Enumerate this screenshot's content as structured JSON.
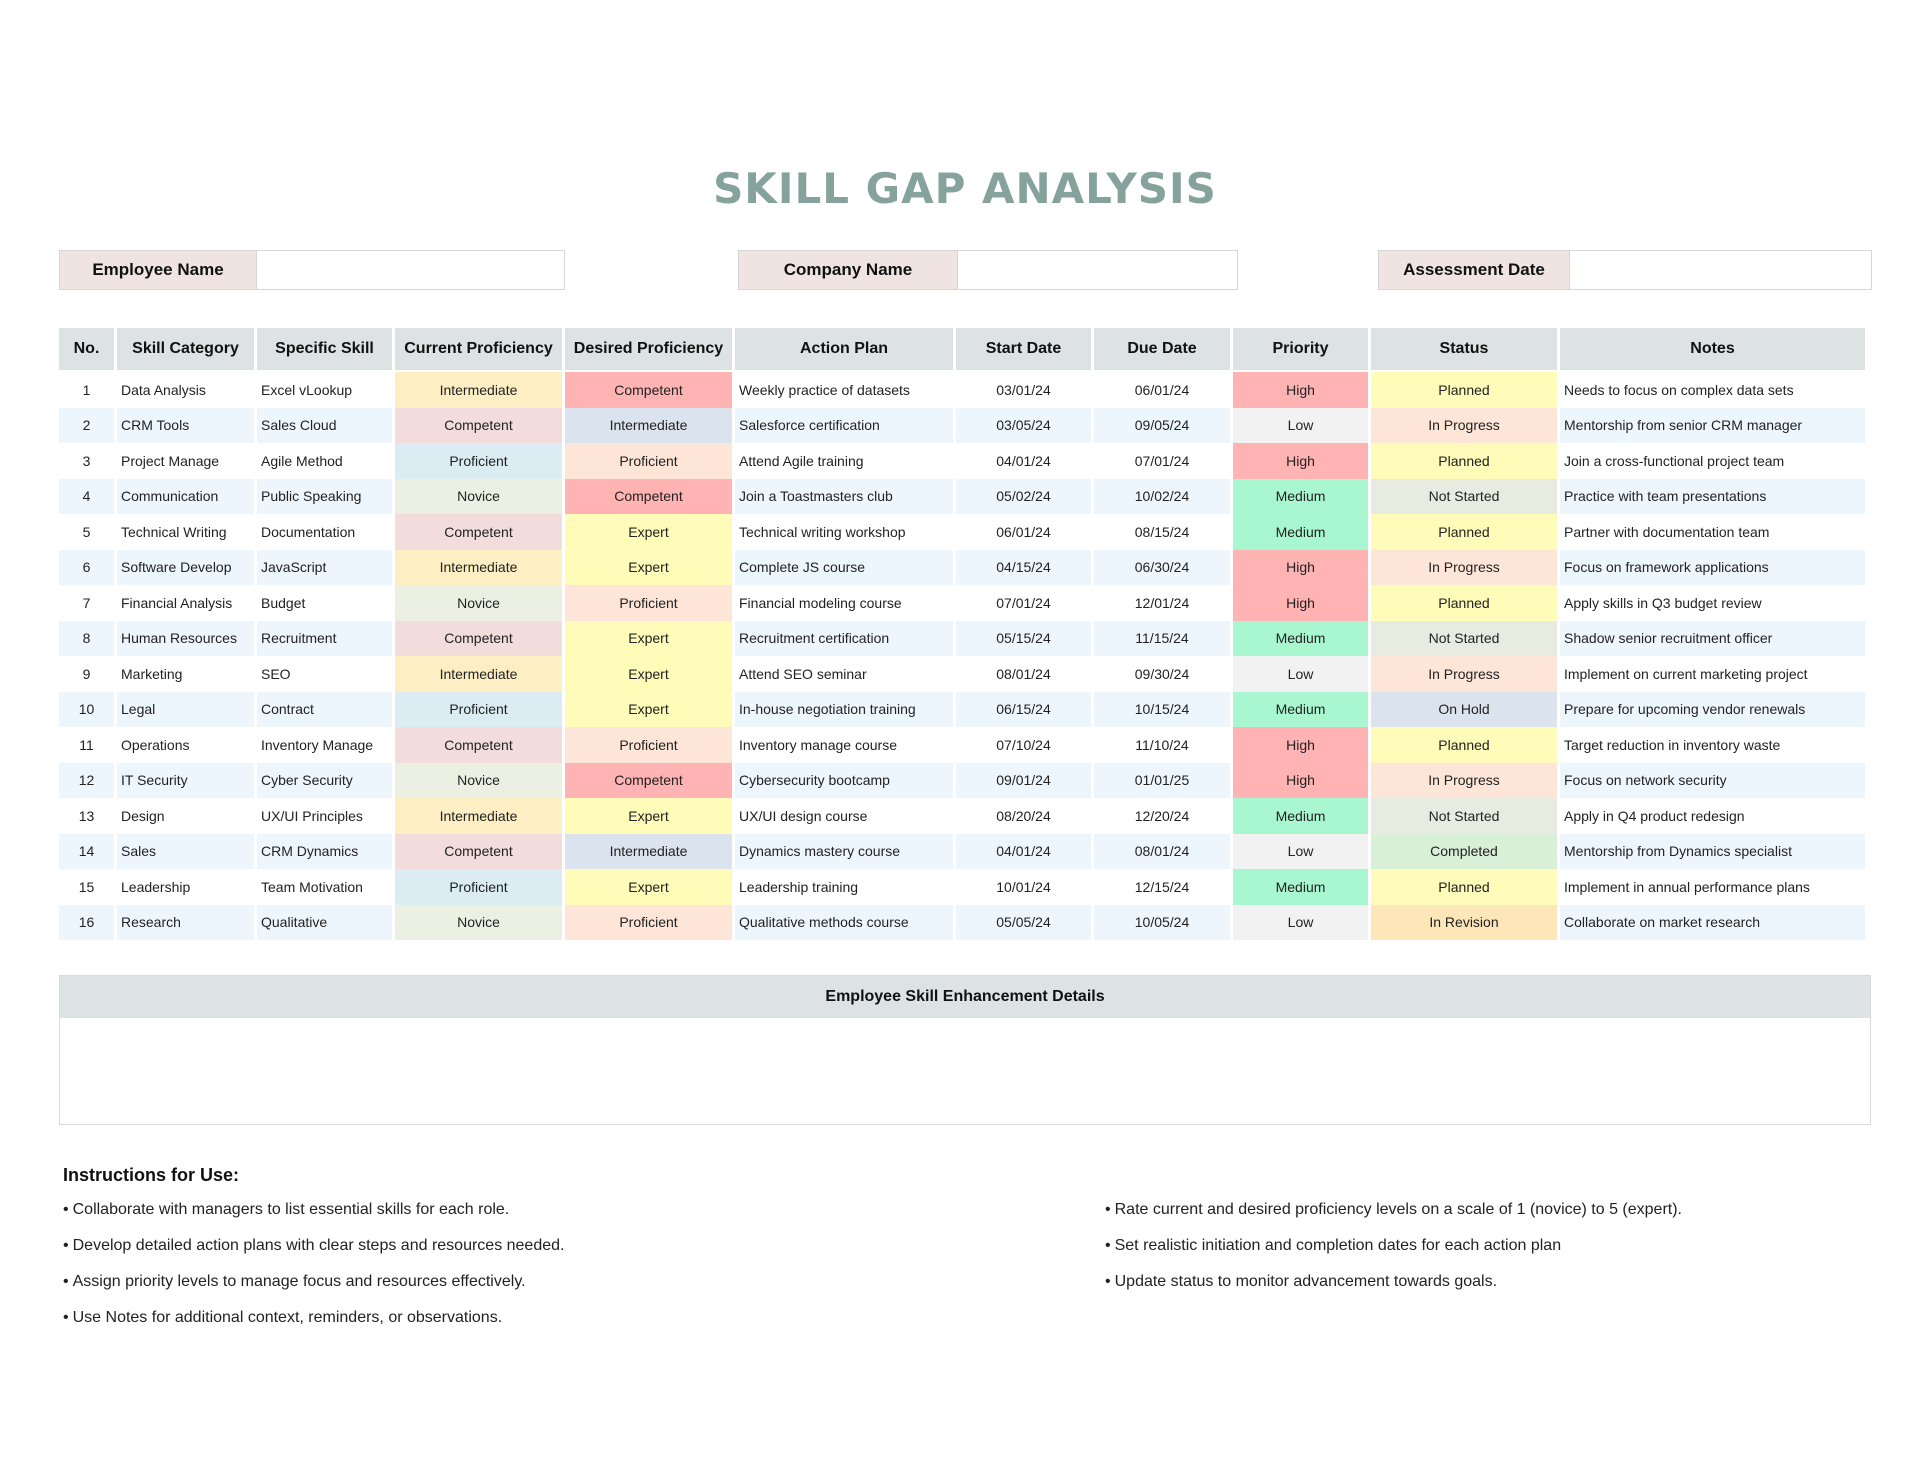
{
  "title": "SKILL GAP ANALYSIS",
  "header_fields": {
    "employee_name": {
      "label": "Employee Name",
      "value": ""
    },
    "company_name": {
      "label": "Company Name",
      "value": ""
    },
    "assessment_date": {
      "label": "Assessment Date",
      "value": ""
    }
  },
  "table": {
    "columns": [
      "No.",
      "Skill Category",
      "Specific Skill",
      "Current Proficiency",
      "Desired Proficiency",
      "Action Plan",
      "Start Date",
      "Due Date",
      "Priority",
      "Status",
      "Notes"
    ],
    "colors": {
      "proficiency": {
        "Intermediate_current": "#fdefc3",
        "Competent_current": "#f3dcdc",
        "Proficient_current": "#dbedf3",
        "Novice_current": "#ecf0e2",
        "Competent_desired": "#ffb3b3",
        "Intermediate_desired": "#dbe4ee",
        "Proficient_desired": "#fde5d8",
        "Expert_desired": "#fefcb8"
      },
      "priority": {
        "High": "#ffb3b3",
        "Low": "#f2f2f2",
        "Medium": "#a8f7d0"
      },
      "status": {
        "Planned": "#fefcb8",
        "In Progress": "#fde5d8",
        "Not Started": "#e8ece0",
        "On Hold": "#dbe4ee",
        "Completed": "#d8efd8",
        "In Revision": "#fde6b8"
      }
    },
    "rows": [
      {
        "no": "1",
        "category": "Data Analysis",
        "skill": "Excel vLookup",
        "current": "Intermediate",
        "desired": "Competent",
        "action": "Weekly practice of datasets",
        "start": "03/01/24",
        "due": "06/01/24",
        "priority": "High",
        "status": "Planned",
        "notes": "Needs to focus on complex data sets"
      },
      {
        "no": "2",
        "category": "CRM Tools",
        "skill": "Sales Cloud",
        "current": "Competent",
        "desired": "Intermediate",
        "action": "Salesforce certification",
        "start": "03/05/24",
        "due": "09/05/24",
        "priority": "Low",
        "status": "In Progress",
        "notes": "Mentorship from senior CRM manager"
      },
      {
        "no": "3",
        "category": "Project Manage",
        "skill": "Agile Method",
        "current": "Proficient",
        "desired": "Proficient",
        "action": "Attend Agile training",
        "start": "04/01/24",
        "due": "07/01/24",
        "priority": "High",
        "status": "Planned",
        "notes": "Join a cross-functional project team"
      },
      {
        "no": "4",
        "category": "Communication",
        "skill": "Public Speaking",
        "current": "Novice",
        "desired": "Competent",
        "action": "Join a Toastmasters club",
        "start": "05/02/24",
        "due": "10/02/24",
        "priority": "Medium",
        "status": "Not Started",
        "notes": "Practice with team presentations"
      },
      {
        "no": "5",
        "category": "Technical Writing",
        "skill": "Documentation",
        "current": "Competent",
        "desired": "Expert",
        "action": "Technical writing workshop",
        "start": "06/01/24",
        "due": "08/15/24",
        "priority": "Medium",
        "status": "Planned",
        "notes": "Partner with documentation team"
      },
      {
        "no": "6",
        "category": "Software Develop",
        "skill": "JavaScript",
        "current": "Intermediate",
        "desired": "Expert",
        "action": "Complete JS course",
        "start": "04/15/24",
        "due": "06/30/24",
        "priority": "High",
        "status": "In Progress",
        "notes": "Focus on framework applications"
      },
      {
        "no": "7",
        "category": "Financial Analysis",
        "skill": "Budget",
        "current": "Novice",
        "desired": "Proficient",
        "action": "Financial modeling course",
        "start": "07/01/24",
        "due": "12/01/24",
        "priority": "High",
        "status": "Planned",
        "notes": "Apply skills in Q3 budget review"
      },
      {
        "no": "8",
        "category": "Human Resources",
        "skill": "Recruitment",
        "current": "Competent",
        "desired": "Expert",
        "action": "Recruitment certification",
        "start": "05/15/24",
        "due": "11/15/24",
        "priority": "Medium",
        "status": "Not Started",
        "notes": "Shadow senior recruitment officer"
      },
      {
        "no": "9",
        "category": "Marketing",
        "skill": "SEO",
        "current": "Intermediate",
        "desired": "Expert",
        "action": "Attend SEO seminar",
        "start": "08/01/24",
        "due": "09/30/24",
        "priority": "Low",
        "status": "In Progress",
        "notes": "Implement on current marketing project"
      },
      {
        "no": "10",
        "category": "Legal",
        "skill": "Contract",
        "current": "Proficient",
        "desired": "Expert",
        "action": "In-house negotiation training",
        "start": "06/15/24",
        "due": "10/15/24",
        "priority": "Medium",
        "status": "On Hold",
        "notes": "Prepare for upcoming vendor renewals"
      },
      {
        "no": "11",
        "category": "Operations",
        "skill": "Inventory Manage",
        "current": "Competent",
        "desired": "Proficient",
        "action": "Inventory manage course",
        "start": "07/10/24",
        "due": "11/10/24",
        "priority": "High",
        "status": "Planned",
        "notes": "Target reduction in inventory waste"
      },
      {
        "no": "12",
        "category": "IT Security",
        "skill": "Cyber Security",
        "current": "Novice",
        "desired": "Competent",
        "action": "Cybersecurity bootcamp",
        "start": "09/01/24",
        "due": "01/01/25",
        "priority": "High",
        "status": "In Progress",
        "notes": "Focus on network security"
      },
      {
        "no": "13",
        "category": "Design",
        "skill": "UX/UI Principles",
        "current": "Intermediate",
        "desired": "Expert",
        "action": "UX/UI design course",
        "start": "08/20/24",
        "due": "12/20/24",
        "priority": "Medium",
        "status": "Not Started",
        "notes": "Apply in Q4 product redesign"
      },
      {
        "no": "14",
        "category": "Sales",
        "skill": "CRM Dynamics",
        "current": "Competent",
        "desired": "Intermediate",
        "action": "Dynamics mastery course",
        "start": "04/01/24",
        "due": "08/01/24",
        "priority": "Low",
        "status": "Completed",
        "notes": "Mentorship from Dynamics specialist"
      },
      {
        "no": "15",
        "category": "Leadership",
        "skill": "Team Motivation",
        "current": "Proficient",
        "desired": "Expert",
        "action": "Leadership training",
        "start": "10/01/24",
        "due": "12/15/24",
        "priority": "Medium",
        "status": "Planned",
        "notes": "Implement in annual performance plans"
      },
      {
        "no": "16",
        "category": "Research",
        "skill": "Qualitative",
        "current": "Novice",
        "desired": "Proficient",
        "action": "Qualitative methods course",
        "start": "05/05/24",
        "due": "10/05/24",
        "priority": "Low",
        "status": "In Revision",
        "notes": "Collaborate on market research"
      }
    ]
  },
  "enhancement": {
    "title": "Employee Skill Enhancement Details",
    "content": ""
  },
  "instructions": {
    "title": "Instructions for Use:",
    "bullet": "•",
    "left": [
      "Collaborate with managers to list essential skills for each role.",
      "Develop detailed action plans with clear steps and resources needed.",
      "Assign priority levels to manage focus and resources effectively.",
      "Use Notes for additional context, reminders, or observations."
    ],
    "right": [
      "Rate current and desired proficiency levels on a scale of 1 (novice) to 5 (expert).",
      "Set realistic initiation and completion dates for each action plan",
      "Update status to monitor advancement towards goals."
    ]
  }
}
